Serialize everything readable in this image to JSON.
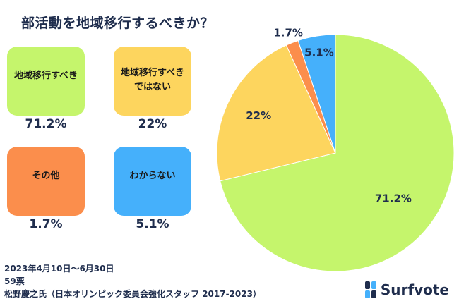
{
  "title": "部活動を地域移行するべきか？",
  "cards": [
    {
      "label_lines": [
        "地域移行すべき"
      ],
      "value": "71.2%",
      "color": "#c5f56c"
    },
    {
      "label_lines": [
        "地域移行すべき",
        "ではない"
      ],
      "value": "22%",
      "color": "#fdd55e"
    },
    {
      "label_lines": [
        "その他"
      ],
      "value": "1.7%",
      "color": "#fb8e4c"
    },
    {
      "label_lines": [
        "わからない"
      ],
      "value": "5.1%",
      "color": "#45b0fb"
    }
  ],
  "meta": {
    "period": "2023年4月10日～6月30日",
    "votes": "59票",
    "source": "松野慶之氏（日本オリンピック委員会強化スタッフ 2017-2023）"
  },
  "logo_text": "Surfvote",
  "chart_data": {
    "type": "pie",
    "title": "部活動を地域移行するべきか？",
    "slices": [
      {
        "category": "地域移行すべき",
        "value": 71.2,
        "label": "71.2%",
        "color": "#c5f56c"
      },
      {
        "category": "地域移行すべきではない",
        "value": 22,
        "label": "22%",
        "color": "#fdd55e"
      },
      {
        "category": "その他",
        "value": 1.7,
        "label": "1.7%",
        "color": "#fb8e4c"
      },
      {
        "category": "わからない",
        "value": 5.1,
        "label": "5.1%",
        "color": "#45b0fb"
      }
    ]
  }
}
